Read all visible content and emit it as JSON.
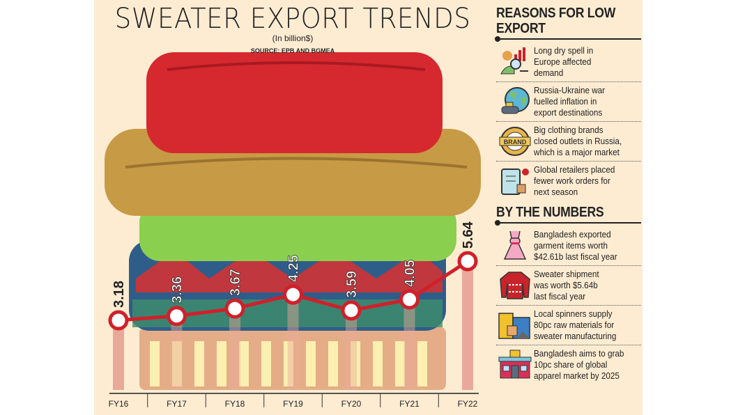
{
  "chart_data": {
    "type": "line",
    "title": "SWEATER EXPORT TRENDS",
    "subtitle": "(In billion$)",
    "source": "SOURCE: EPB AND BGMEA",
    "categories": [
      "FY16",
      "FY17",
      "FY18",
      "FY19",
      "FY20",
      "FY21",
      "FY22"
    ],
    "values": [
      3.18,
      3.36,
      3.67,
      4.25,
      3.59,
      4.05,
      5.64
    ],
    "value_labels": [
      "3.18",
      "3.36",
      "3.67",
      "4.25",
      "3.59",
      "4.05",
      "5.64"
    ],
    "ylabel": "",
    "xlabel": "",
    "grid": false,
    "line_color": "#d0202a",
    "bar_color": "#e9a99a"
  },
  "reasons": {
    "heading": "REASONS FOR LOW EXPORT",
    "items": [
      {
        "icon": "analysis-icon",
        "text": [
          "Long dry spell in",
          "Europe affected",
          "demand"
        ]
      },
      {
        "icon": "globe-shipping-icon",
        "text": [
          "Russia-Ukraine war",
          "fuelled inflation in",
          "export destinations"
        ]
      },
      {
        "icon": "brand-badge-icon",
        "badge": "BRAND",
        "text": [
          "Big clothing brands",
          "closed outlets in Russia,",
          "which is a major market"
        ]
      },
      {
        "icon": "clipboard-order-icon",
        "text": [
          "Global retailers placed",
          "fewer work orders for",
          "next season"
        ]
      }
    ]
  },
  "numbers": {
    "heading": "BY THE NUMBERS",
    "items": [
      {
        "icon": "dress-icon",
        "text": [
          "Bangladesh exported",
          "garment items worth",
          "$42.61b last fiscal year"
        ]
      },
      {
        "icon": "sweater-icon",
        "text": [
          "Sweater shipment",
          "was worth $5.64b",
          "last fiscal year"
        ]
      },
      {
        "icon": "warehouse-materials-icon",
        "text": [
          "Local spinners supply",
          "80pc raw materials for",
          "sweater manufacturing"
        ]
      },
      {
        "icon": "shop-icon",
        "text": [
          "Bangladesh aims to grab",
          "10pc share of global",
          "apparel market by 2025"
        ]
      }
    ]
  }
}
